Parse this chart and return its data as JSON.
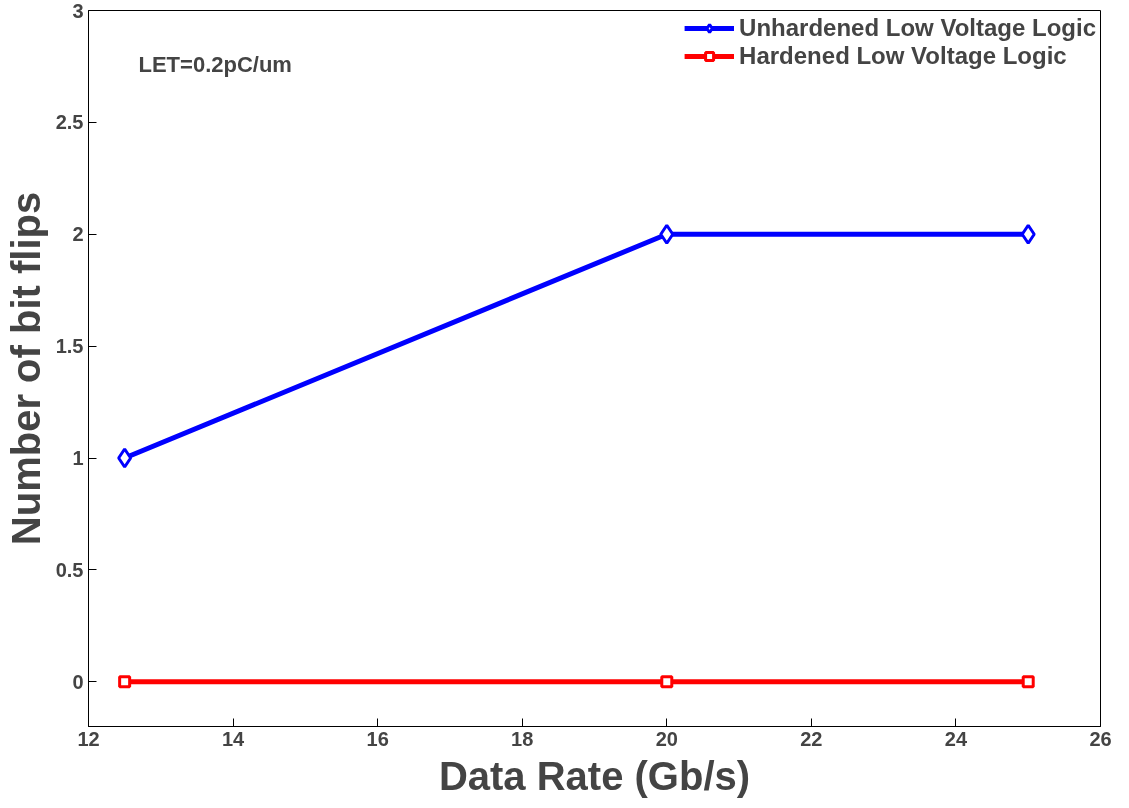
{
  "chart_data": {
    "type": "line",
    "xlabel": "Data Rate (Gb/s)",
    "ylabel": "Number of bit flips",
    "x": [
      12.5,
      20,
      25
    ],
    "series": [
      {
        "name": "Unhardened Low Voltage Logic",
        "color": "#0000ff",
        "values": [
          1,
          2,
          2
        ],
        "marker": "diamond"
      },
      {
        "name": "Hardened Low Voltage Logic",
        "color": "#ff0000",
        "values": [
          0,
          0,
          0
        ],
        "marker": "square"
      }
    ],
    "xlim": [
      12,
      26
    ],
    "xticks": [
      12,
      14,
      16,
      18,
      20,
      22,
      24,
      26
    ],
    "ylim": [
      -0.2,
      3
    ],
    "yticks": [
      0,
      0.5,
      1,
      1.5,
      2,
      2.5,
      3
    ],
    "annotations": [
      "LET=0.2pC/um"
    ],
    "legend": "top right",
    "grid": false,
    "line_style": "solid"
  }
}
